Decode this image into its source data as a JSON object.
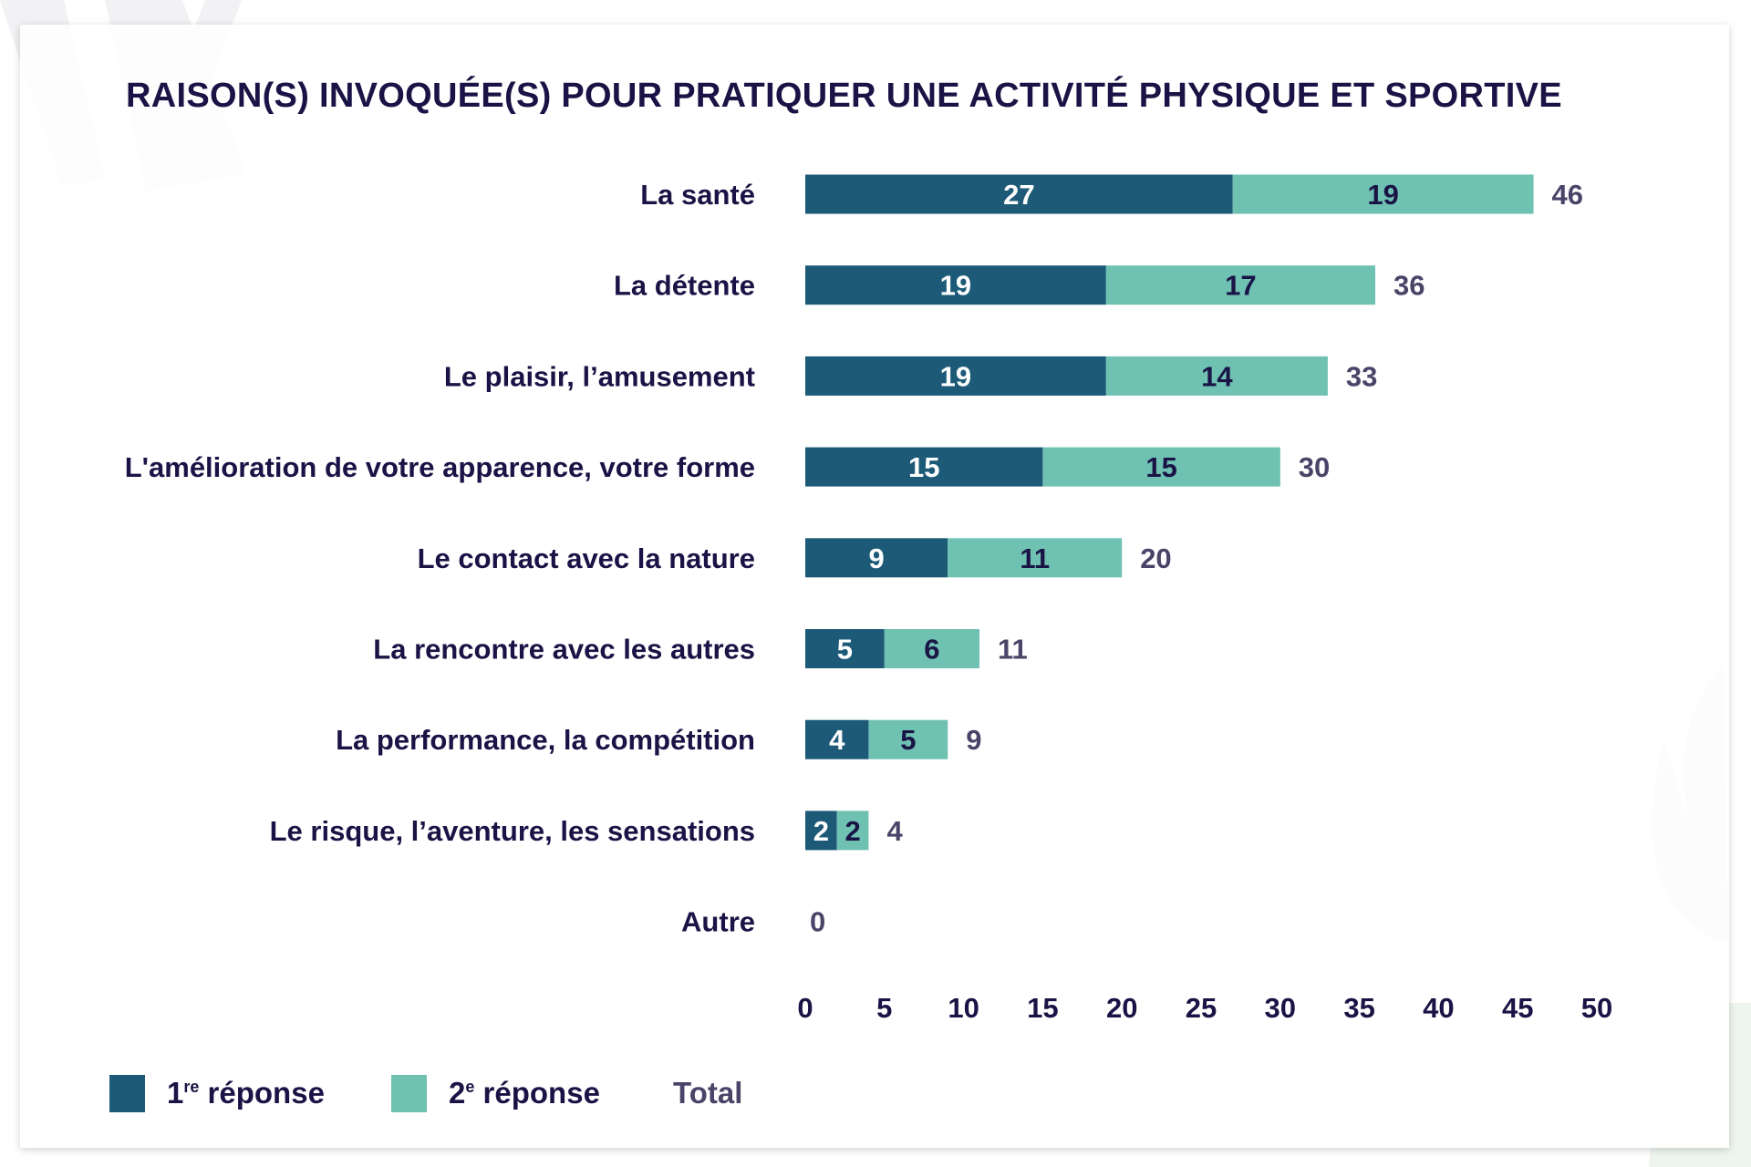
{
  "chart_data": {
    "type": "bar",
    "orientation": "horizontal",
    "stacked": true,
    "title": "RAISON(S) INVOQUÉE(S) POUR PRATIQUER UNE ACTIVITÉ PHYSIQUE ET SPORTIVE",
    "categories": [
      "La santé",
      "La détente",
      "Le plaisir, l’amusement",
      "L'amélioration de votre apparence, votre forme",
      "Le contact avec la nature",
      "La rencontre avec les autres",
      "La performance, la compétition",
      "Le risque, l’aventure, les sensations",
      "Autre"
    ],
    "series": [
      {
        "name": "1re réponse",
        "values": [
          27,
          19,
          19,
          15,
          9,
          5,
          4,
          2,
          0
        ],
        "color": "#1c5a78"
      },
      {
        "name": "2e réponse",
        "values": [
          19,
          17,
          14,
          15,
          11,
          6,
          5,
          2,
          0
        ],
        "color": "#6fc1b2"
      }
    ],
    "totals": {
      "name": "Total",
      "values": [
        46,
        36,
        33,
        30,
        20,
        11,
        9,
        4,
        0
      ],
      "color": "#4a4468"
    },
    "xlim": [
      0,
      50
    ],
    "xticks": [
      0,
      5,
      10,
      15,
      20,
      25,
      30,
      35,
      40,
      45,
      50
    ],
    "grid": false,
    "legend_position": "bottom-left"
  },
  "legend": {
    "first_base": "1",
    "first_sup": "re",
    "first_rest": " réponse",
    "second_base": "2",
    "second_sup": "e",
    "second_rest": " réponse",
    "total": "Total"
  }
}
